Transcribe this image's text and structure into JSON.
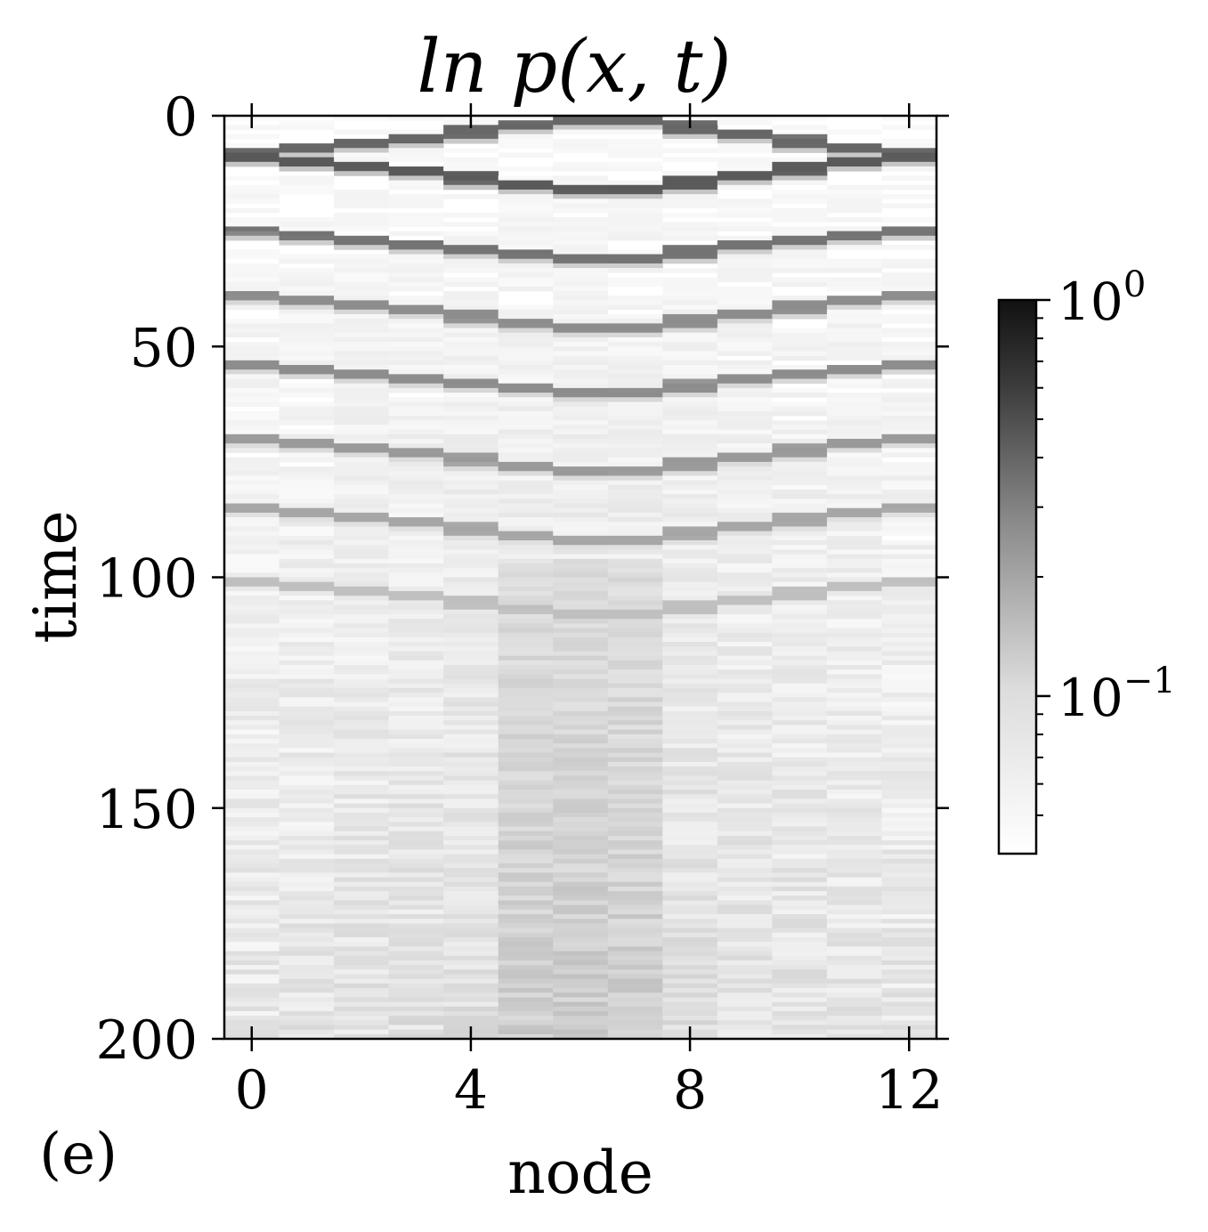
{
  "chart_data": {
    "type": "heatmap",
    "title": "ln p(x, t)",
    "xlabel": "node",
    "ylabel": "time",
    "panel_label": "(e)",
    "x_range": [
      -0.5,
      12.5
    ],
    "y_range": [
      0,
      200
    ],
    "y_inverted": true,
    "x_ticks": [
      "0",
      "4",
      "8",
      "12"
    ],
    "x_tick_values": [
      0,
      4,
      8,
      12
    ],
    "y_ticks": [
      "0",
      "50",
      "100",
      "150",
      "200"
    ],
    "y_tick_values": [
      0,
      50,
      100,
      150,
      200
    ],
    "nodes": 13,
    "time_steps": 200,
    "colormap": "gray_r",
    "color_scale": "log",
    "color_range": [
      0.04,
      1.0
    ],
    "colorbar_ticks": [
      {
        "base": "10",
        "exp": "0",
        "value": 1.0
      },
      {
        "base": "10",
        "exp": "−1",
        "value": 0.1
      }
    ],
    "description_of_pattern": "Quantum-walk-like interference fronts from both edge nodes toward center, repeating with decaying contrast over time",
    "ridge_lines": [
      {
        "from_node": 0,
        "from_time": 8,
        "to_node": 6.5,
        "to_time": 0,
        "intensity": 0.6
      },
      {
        "from_node": 12,
        "from_time": 8,
        "to_node": 6.5,
        "to_time": 0,
        "intensity": 0.6
      },
      {
        "from_node": 0,
        "from_time": 8,
        "to_node": 6.5,
        "to_time": 16,
        "intensity": 0.65
      },
      {
        "from_node": 12,
        "from_time": 8,
        "to_node": 6.5,
        "to_time": 16,
        "intensity": 0.65
      },
      {
        "from_node": 0,
        "from_time": 24,
        "to_node": 6.5,
        "to_time": 31,
        "intensity": 0.55
      },
      {
        "from_node": 12,
        "from_time": 24,
        "to_node": 6.5,
        "to_time": 31,
        "intensity": 0.55
      },
      {
        "from_node": 0,
        "from_time": 38,
        "to_node": 6.5,
        "to_time": 46,
        "intensity": 0.45
      },
      {
        "from_node": 12,
        "from_time": 38,
        "to_node": 6.5,
        "to_time": 46,
        "intensity": 0.45
      },
      {
        "from_node": 0,
        "from_time": 53,
        "to_node": 6.5,
        "to_time": 60,
        "intensity": 0.45
      },
      {
        "from_node": 12,
        "from_time": 53,
        "to_node": 6.5,
        "to_time": 60,
        "intensity": 0.45
      },
      {
        "from_node": 0,
        "from_time": 69,
        "to_node": 6.5,
        "to_time": 77,
        "intensity": 0.4
      },
      {
        "from_node": 12,
        "from_time": 69,
        "to_node": 6.5,
        "to_time": 77,
        "intensity": 0.4
      },
      {
        "from_node": 0,
        "from_time": 84,
        "to_node": 6.5,
        "to_time": 92,
        "intensity": 0.35
      },
      {
        "from_node": 12,
        "from_time": 84,
        "to_node": 6.5,
        "to_time": 92,
        "intensity": 0.35
      },
      {
        "from_node": 0,
        "from_time": 100,
        "to_node": 6.5,
        "to_time": 108,
        "intensity": 0.25
      },
      {
        "from_node": 12,
        "from_time": 100,
        "to_node": 6.5,
        "to_time": 108,
        "intensity": 0.25
      }
    ]
  }
}
